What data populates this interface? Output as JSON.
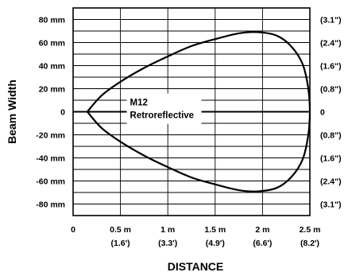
{
  "chart_data": {
    "type": "line",
    "xlabel": "DISTANCE",
    "ylabel": "Beam Width",
    "xlim": [
      0,
      2.5
    ],
    "ylim": [
      -90,
      90
    ],
    "grid": true,
    "x_ticks": [
      {
        "value": 0,
        "label": "0",
        "sublabel": ""
      },
      {
        "value": 0.5,
        "label": "0.5 m",
        "sublabel": "(1.6')"
      },
      {
        "value": 1,
        "label": "1 m",
        "sublabel": "(3.3')"
      },
      {
        "value": 1.5,
        "label": "1.5 m",
        "sublabel": "(4.9')"
      },
      {
        "value": 2,
        "label": "2 m",
        "sublabel": "(6.6')"
      },
      {
        "value": 2.5,
        "label": "2.5 m",
        "sublabel": "(8.2')"
      }
    ],
    "y_ticks": [
      {
        "value": 80,
        "left": "80 mm",
        "right": "(3.1\")"
      },
      {
        "value": 60,
        "left": "60 mm",
        "right": "(2.4\")"
      },
      {
        "value": 40,
        "left": "40 mm",
        "right": "(1.6\")"
      },
      {
        "value": 20,
        "left": "20 mm",
        "right": "(0.8\")"
      },
      {
        "value": 0,
        "left": "0",
        "right": "0"
      },
      {
        "value": -20,
        "left": "-20 mm",
        "right": "(0.8\")"
      },
      {
        "value": -40,
        "left": "-40 mm",
        "right": "(1.6\")"
      },
      {
        "value": -60,
        "left": "-60 mm",
        "right": "(2.4\")"
      },
      {
        "value": -80,
        "left": "-80 mm",
        "right": "(3.1\")"
      }
    ],
    "annotation": [
      "M12",
      "Retroreflective"
    ],
    "series": [
      {
        "x": [
          0.15,
          0.3,
          0.5,
          0.75,
          1.0,
          1.25,
          1.5,
          1.75,
          1.95,
          2.15,
          2.3,
          2.42,
          2.48,
          2.5,
          2.48,
          2.42,
          2.3,
          2.15,
          1.95,
          1.75,
          1.5,
          1.25,
          1.0,
          0.75,
          0.5,
          0.3,
          0.15
        ],
        "y": [
          0,
          14,
          26,
          38,
          48,
          57,
          63,
          68,
          69,
          66,
          57,
          42,
          22,
          0,
          -22,
          -42,
          -57,
          -66,
          -69,
          -68,
          -63,
          -57,
          -48,
          -38,
          -26,
          -14,
          0
        ]
      }
    ]
  }
}
